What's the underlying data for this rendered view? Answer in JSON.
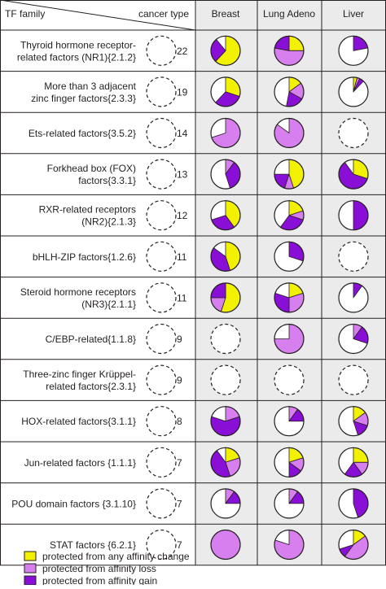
{
  "header": {
    "tf_family": "TF family",
    "cancer_type": "cancer type",
    "columns": [
      "Breast",
      "Lung Adeno",
      "Liver"
    ]
  },
  "colors": {
    "any_change": "#f2f200",
    "affinity_loss": "#d77fee",
    "affinity_gain": "#8a0fd6",
    "unprotected": "#ffffff",
    "grid": "#231f20",
    "shade": "#ebebeb"
  },
  "legend": [
    {
      "label": "protected from any affinity change",
      "color": "#f2f200"
    },
    {
      "label": "protected from affinity loss",
      "color": "#d77fee"
    },
    {
      "label": "protected from affinity gain",
      "color": "#8a0fd6"
    }
  ],
  "chart_data": {
    "type": "pie",
    "series_order": [
      "any_change",
      "affinity_loss",
      "affinity_gain"
    ],
    "rows": [
      {
        "name_lines": [
          "Thyroid hormone receptor-",
          "related factors (NR1){2.1.2}"
        ],
        "count": "22",
        "pies": [
          {
            "any_change": 0.62,
            "affinity_loss": 0.0,
            "affinity_gain": 0.27
          },
          {
            "any_change": 0.25,
            "affinity_loss": 0.53,
            "affinity_gain": 0.22
          },
          {
            "any_change": 0.0,
            "affinity_loss": 0.0,
            "affinity_gain": 0.22
          }
        ]
      },
      {
        "name_lines": [
          "More than 3 adjacent",
          "zinc finger factors{2.3.3}"
        ],
        "count": "19",
        "pies": [
          {
            "any_change": 0.3,
            "affinity_loss": 0.0,
            "affinity_gain": 0.32
          },
          {
            "any_change": 0.15,
            "affinity_loss": 0.18,
            "affinity_gain": 0.2
          },
          {
            "any_change": 0.04,
            "affinity_loss": 0.03,
            "affinity_gain": 0.05
          }
        ]
      },
      {
        "name_lines": [
          "Ets-related factors{3.5.2}"
        ],
        "count": "14",
        "pies": [
          {
            "any_change": 0.0,
            "affinity_loss": 0.7,
            "affinity_gain": 0.0
          },
          {
            "any_change": 0.0,
            "affinity_loss": 0.85,
            "affinity_gain": 0.0
          },
          {
            "any_change": 0.0,
            "affinity_loss": 0.0,
            "affinity_gain": 0.0
          }
        ]
      },
      {
        "name_lines": [
          "Forkhead box (FOX)",
          "factors{3.3.1}"
        ],
        "count": "13",
        "pies": [
          {
            "any_change": 0.0,
            "affinity_loss": 0.1,
            "affinity_gain": 0.35
          },
          {
            "any_change": 0.45,
            "affinity_loss": 0.1,
            "affinity_gain": 0.2
          },
          {
            "any_change": 0.3,
            "affinity_loss": 0.0,
            "affinity_gain": 0.6
          }
        ]
      },
      {
        "name_lines": [
          "RXR-related receptors",
          "(NR2){2.1.3}"
        ],
        "count": "12",
        "pies": [
          {
            "any_change": 0.4,
            "affinity_loss": 0.0,
            "affinity_gain": 0.3
          },
          {
            "any_change": 0.2,
            "affinity_loss": 0.1,
            "affinity_gain": 0.3
          },
          {
            "any_change": 0.0,
            "affinity_loss": 0.0,
            "affinity_gain": 0.5
          }
        ]
      },
      {
        "name_lines": [
          "bHLH-ZIP factors{1.2.6}"
        ],
        "count": "11",
        "pies": [
          {
            "any_change": 0.45,
            "affinity_loss": 0.0,
            "affinity_gain": 0.4
          },
          {
            "any_change": 0.0,
            "affinity_loss": 0.0,
            "affinity_gain": 0.3
          },
          {
            "any_change": 0.0,
            "affinity_loss": 0.0,
            "affinity_gain": 0.0
          }
        ]
      },
      {
        "name_lines": [
          "Steroid hormone receptors",
          "(NR3){2.1.1}"
        ],
        "count": "11",
        "pies": [
          {
            "any_change": 0.55,
            "affinity_loss": 0.2,
            "affinity_gain": 0.25
          },
          {
            "any_change": 0.2,
            "affinity_loss": 0.3,
            "affinity_gain": 0.3
          },
          {
            "any_change": 0.0,
            "affinity_loss": 0.0,
            "affinity_gain": 0.1
          }
        ]
      },
      {
        "name_lines": [
          "C/EBP-related{1.1.8}"
        ],
        "count": "9",
        "pies": [
          {
            "any_change": 0.0,
            "affinity_loss": 0.0,
            "affinity_gain": 0.0
          },
          {
            "any_change": 0.0,
            "affinity_loss": 0.75,
            "affinity_gain": 0.0
          },
          {
            "any_change": 0.0,
            "affinity_loss": 0.1,
            "affinity_gain": 0.2
          }
        ]
      },
      {
        "name_lines": [
          "Three-zinc finger Krüppel-",
          "related factors{2.3.1}"
        ],
        "count": "9",
        "pies": [
          {
            "any_change": 0.0,
            "affinity_loss": 0.0,
            "affinity_gain": 0.0
          },
          {
            "any_change": 0.0,
            "affinity_loss": 0.0,
            "affinity_gain": 0.0
          },
          {
            "any_change": 0.0,
            "affinity_loss": 0.0,
            "affinity_gain": 0.0
          }
        ]
      },
      {
        "name_lines": [
          "HOX-related factors{3.1.1}"
        ],
        "count": "8",
        "pies": [
          {
            "any_change": 0.0,
            "affinity_loss": 0.2,
            "affinity_gain": 0.6
          },
          {
            "any_change": 0.0,
            "affinity_loss": 0.1,
            "affinity_gain": 0.15
          },
          {
            "any_change": 0.15,
            "affinity_loss": 0.15,
            "affinity_gain": 0.15
          }
        ]
      },
      {
        "name_lines": [
          "Jun-related factors {1.1.1}"
        ],
        "count": "7",
        "pies": [
          {
            "any_change": 0.2,
            "affinity_loss": 0.25,
            "affinity_gain": 0.45
          },
          {
            "any_change": 0.2,
            "affinity_loss": 0.15,
            "affinity_gain": 0.15
          },
          {
            "any_change": 0.25,
            "affinity_loss": 0.15,
            "affinity_gain": 0.2
          }
        ]
      },
      {
        "name_lines": [
          "POU domain factors {3.1.10}"
        ],
        "count": "7",
        "pies": [
          {
            "any_change": 0.0,
            "affinity_loss": 0.1,
            "affinity_gain": 0.15
          },
          {
            "any_change": 0.0,
            "affinity_loss": 0.1,
            "affinity_gain": 0.15
          },
          {
            "any_change": 0.0,
            "affinity_loss": 0.0,
            "affinity_gain": 0.45
          }
        ]
      },
      {
        "name_lines": [
          "STAT factors {6.2.1}"
        ],
        "count": "7",
        "pies": [
          {
            "any_change": 0.0,
            "affinity_loss": 1.0,
            "affinity_gain": 0.0
          },
          {
            "any_change": 0.0,
            "affinity_loss": 0.8,
            "affinity_gain": 0.0
          },
          {
            "any_change": 0.15,
            "affinity_loss": 0.45,
            "affinity_gain": 0.1
          }
        ]
      }
    ]
  }
}
